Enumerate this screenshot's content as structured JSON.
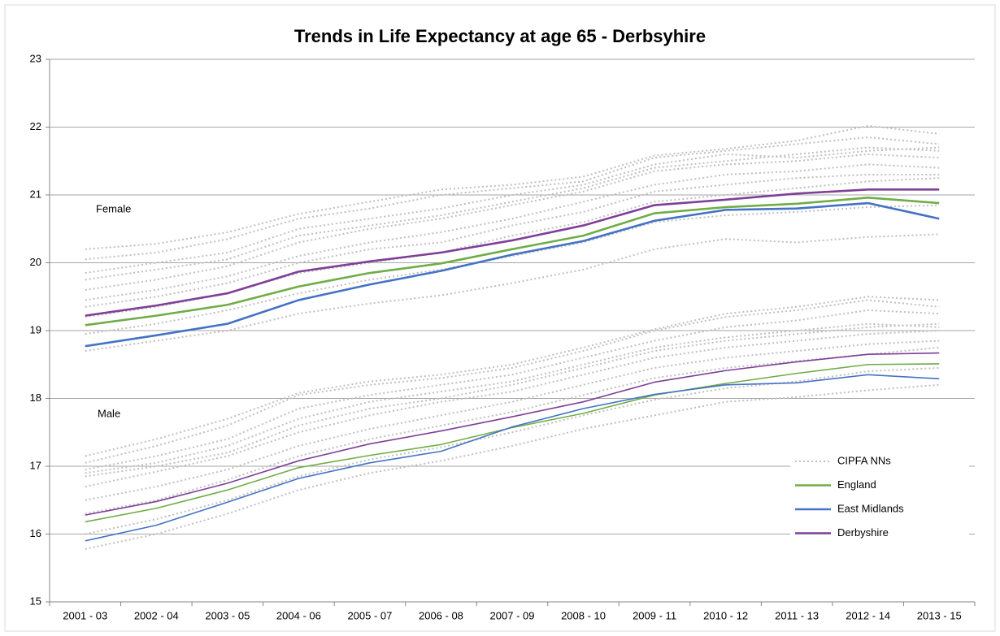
{
  "chart_data": {
    "type": "line",
    "title": "Trends in Life Expectancy at age 65 - Derbsyhire",
    "annotations": [
      "Female",
      "Male"
    ],
    "categories": [
      "2001 - 03",
      "2002 - 04",
      "2003 - 05",
      "2004 - 06",
      "2005 - 07",
      "2006 - 08",
      "2007 - 09",
      "2008 - 10",
      "2009 - 11",
      "2010 - 12",
      "2011 - 13",
      "2012 - 14",
      "2013 - 15"
    ],
    "ylim": [
      15,
      23
    ],
    "yticks": [
      15,
      16,
      17,
      18,
      19,
      20,
      21,
      22,
      23
    ],
    "grid": true,
    "series": [
      {
        "name": "CIPFA NNs",
        "color": "#bfbfbf",
        "dashed": true,
        "lines": [
          [
            18.7,
            18.85,
            19.0,
            19.25,
            19.4,
            19.52,
            19.7,
            19.9,
            20.2,
            20.35,
            20.3,
            20.38,
            20.42
          ],
          [
            18.95,
            19.1,
            19.3,
            19.55,
            19.75,
            19.9,
            20.1,
            20.3,
            20.6,
            20.7,
            20.75,
            20.82,
            20.85
          ],
          [
            19.2,
            19.35,
            19.55,
            19.85,
            20.0,
            20.15,
            20.4,
            20.6,
            20.9,
            21.0,
            21.1,
            21.2,
            21.25
          ],
          [
            19.45,
            19.6,
            19.8,
            20.1,
            20.3,
            20.45,
            20.65,
            20.9,
            21.15,
            21.3,
            21.35,
            21.45,
            21.4
          ],
          [
            19.6,
            19.75,
            19.95,
            20.3,
            20.5,
            20.65,
            20.85,
            21.05,
            21.35,
            21.45,
            21.5,
            21.6,
            21.55
          ],
          [
            19.85,
            20.0,
            20.15,
            20.5,
            20.65,
            20.8,
            21.0,
            21.15,
            21.45,
            21.6,
            21.55,
            21.65,
            21.7
          ],
          [
            20.05,
            20.15,
            20.35,
            20.65,
            20.8,
            21.0,
            21.1,
            21.2,
            21.55,
            21.65,
            21.75,
            21.85,
            21.75
          ],
          [
            20.2,
            20.28,
            20.45,
            20.72,
            20.9,
            21.08,
            21.15,
            21.27,
            21.58,
            21.68,
            21.8,
            22.02,
            21.9
          ],
          [
            19.75,
            19.9,
            20.05,
            20.4,
            20.55,
            20.7,
            20.9,
            21.1,
            21.4,
            21.5,
            21.6,
            21.7,
            21.65
          ],
          [
            19.35,
            19.5,
            19.7,
            20.0,
            20.2,
            20.3,
            20.55,
            20.75,
            21.05,
            21.15,
            21.25,
            21.3,
            21.3
          ],
          [
            15.78,
            16.0,
            16.3,
            16.65,
            16.9,
            17.08,
            17.3,
            17.55,
            17.75,
            17.95,
            18.02,
            18.12,
            18.2
          ],
          [
            16.0,
            16.22,
            16.5,
            16.85,
            17.1,
            17.28,
            17.5,
            17.75,
            17.98,
            18.15,
            18.25,
            18.4,
            18.45
          ],
          [
            16.5,
            16.7,
            16.95,
            17.3,
            17.55,
            17.75,
            17.95,
            18.2,
            18.45,
            18.6,
            18.7,
            18.8,
            18.85
          ],
          [
            16.7,
            16.92,
            17.15,
            17.5,
            17.75,
            17.95,
            18.1,
            18.35,
            18.6,
            18.75,
            18.85,
            18.95,
            19.0
          ],
          [
            16.9,
            17.05,
            17.3,
            17.7,
            17.95,
            18.1,
            18.25,
            18.5,
            18.75,
            18.9,
            19.0,
            19.1,
            19.05
          ],
          [
            16.95,
            17.15,
            17.4,
            17.85,
            18.05,
            18.2,
            18.35,
            18.6,
            18.85,
            19.05,
            19.15,
            19.3,
            19.25
          ],
          [
            17.05,
            17.3,
            17.6,
            18.05,
            18.2,
            18.3,
            18.45,
            18.7,
            19.0,
            19.2,
            19.3,
            19.45,
            19.35
          ],
          [
            17.15,
            17.4,
            17.7,
            18.08,
            18.25,
            18.35,
            18.5,
            18.75,
            19.02,
            19.25,
            19.35,
            19.5,
            19.45
          ],
          [
            16.85,
            17.0,
            17.2,
            17.6,
            17.85,
            18.0,
            18.2,
            18.45,
            18.7,
            18.85,
            18.95,
            19.05,
            19.1
          ],
          [
            16.3,
            16.5,
            16.8,
            17.15,
            17.4,
            17.6,
            17.8,
            18.05,
            18.3,
            18.45,
            18.55,
            18.65,
            18.75
          ]
        ]
      },
      {
        "name": "England",
        "color": "#70ad47",
        "lines": [
          [
            19.08,
            19.22,
            19.38,
            19.65,
            19.85,
            19.99,
            20.2,
            20.4,
            20.73,
            20.82,
            20.87,
            20.96,
            20.88
          ],
          [
            16.18,
            16.38,
            16.65,
            16.98,
            17.16,
            17.32,
            17.57,
            17.78,
            18.05,
            18.22,
            18.37,
            18.5,
            18.51
          ]
        ]
      },
      {
        "name": "East Midlands",
        "color": "#4472c4",
        "lines": [
          [
            18.77,
            18.93,
            19.1,
            19.45,
            19.68,
            19.88,
            20.12,
            20.32,
            20.62,
            20.78,
            20.8,
            20.88,
            20.65
          ],
          [
            15.9,
            16.13,
            16.47,
            16.82,
            17.05,
            17.22,
            17.58,
            17.85,
            18.06,
            18.2,
            18.23,
            18.35,
            18.29
          ]
        ]
      },
      {
        "name": "Derbyshire",
        "color": "#7f3f98",
        "lines": [
          [
            19.22,
            19.37,
            19.55,
            19.87,
            20.02,
            20.15,
            20.33,
            20.55,
            20.85,
            20.93,
            21.02,
            21.08,
            21.08
          ],
          [
            16.28,
            16.48,
            16.75,
            17.08,
            17.33,
            17.52,
            17.73,
            17.95,
            18.24,
            18.41,
            18.54,
            18.65,
            18.67
          ]
        ]
      }
    ]
  }
}
